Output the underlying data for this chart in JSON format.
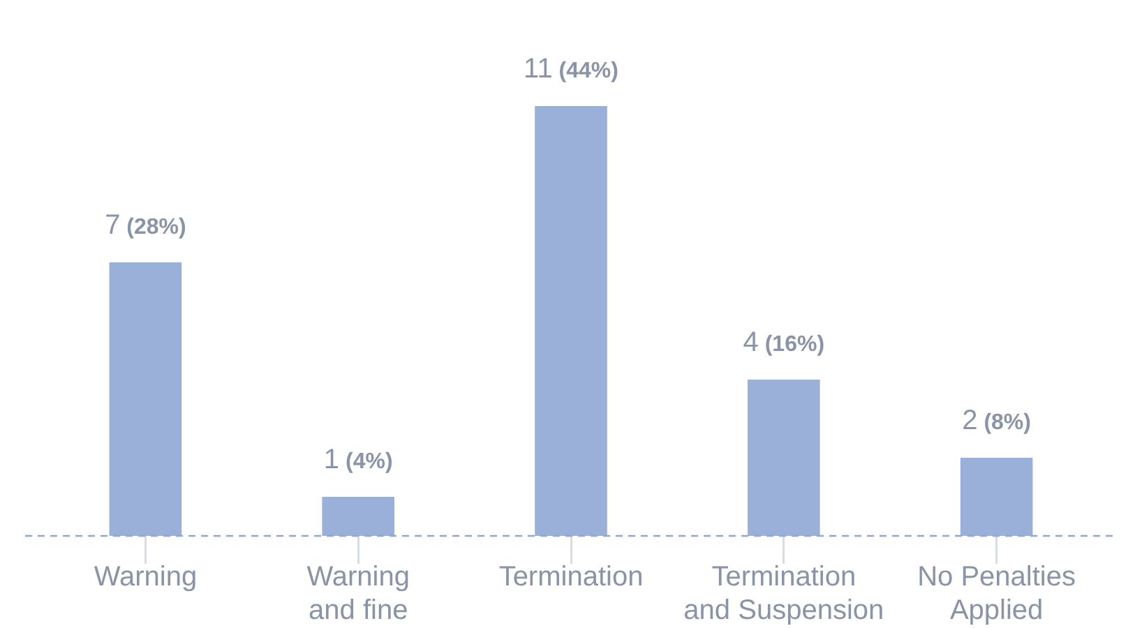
{
  "chart_data": {
    "type": "bar",
    "categories": [
      "Warning",
      "Warning and fine",
      "Termination",
      "Termination and Suspension",
      "No Penalties Applied"
    ],
    "values": [
      7,
      1,
      11,
      4,
      2
    ],
    "value_labels": [
      "7 (28%)",
      "1 (4%)",
      "11 (44%)",
      "4 (16%)",
      "2 (8%)"
    ],
    "color": "#9ab0d9",
    "tick_labels": "x",
    "grid": false,
    "legend": false,
    "ref_lines": [
      {
        "axis": "y",
        "value": 0,
        "color": "#8fa6dd",
        "line_style": "dashed"
      }
    ]
  }
}
